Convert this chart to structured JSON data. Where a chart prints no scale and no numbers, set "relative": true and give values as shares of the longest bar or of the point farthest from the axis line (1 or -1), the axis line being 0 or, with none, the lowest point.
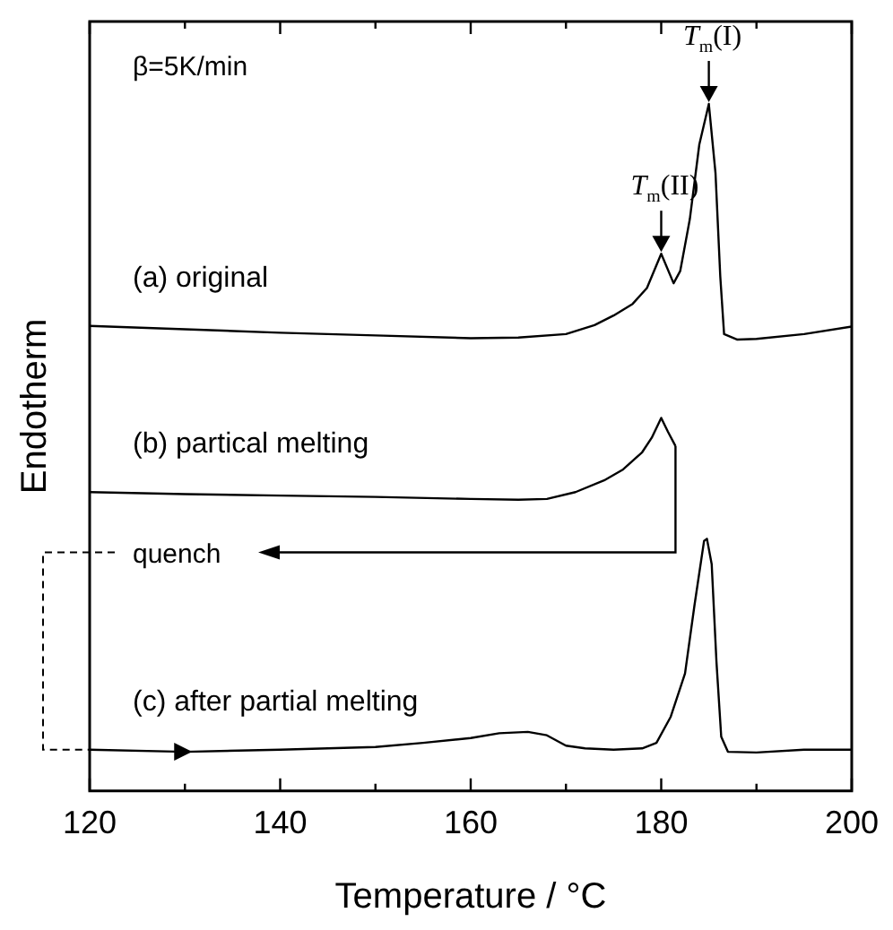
{
  "chart_data": {
    "type": "line",
    "relative": true,
    "xlabel": "Temperature / °C",
    "ylabel": "Endotherm",
    "xlim": [
      120,
      200
    ],
    "xticks": [
      120,
      {
        "value": 130,
        "label": null
      },
      140,
      {
        "value": 150,
        "label": null
      },
      160,
      {
        "value": 170,
        "label": null
      },
      180,
      {
        "value": 190,
        "label": null
      },
      200
    ],
    "grid": false,
    "legend": false,
    "marker": "none",
    "line_style": "solid",
    "series": [
      {
        "name": "(a) original",
        "color": "#000000",
        "x": [
          120,
          130,
          140,
          150,
          160,
          165,
          170,
          173,
          175,
          177,
          178.5,
          180,
          181.3,
          182,
          183,
          184,
          185,
          185.7,
          186.2,
          186.6,
          188,
          190,
          195,
          200
        ],
        "values": [
          0.677,
          0.672,
          0.667,
          0.663,
          0.659,
          0.66,
          0.665,
          0.678,
          0.692,
          0.709,
          0.732,
          0.782,
          0.739,
          0.757,
          0.832,
          0.941,
          1,
          0.899,
          0.749,
          0.665,
          0.657,
          0.658,
          0.665,
          0.676
        ]
      },
      {
        "name": "(b) partical melting",
        "color": "#000000",
        "x": [
          120,
          130,
          140,
          150,
          160,
          165,
          168,
          171,
          174,
          176,
          178,
          179,
          180,
          180.7,
          181.5
        ],
        "values": [
          0.435,
          0.432,
          0.43,
          0.428,
          0.425,
          0.424,
          0.425,
          0.435,
          0.452,
          0.468,
          0.493,
          0.514,
          0.543,
          0.523,
          0.502
        ]
      },
      {
        "name": "(c) after partial melting",
        "color": "#000000",
        "x": [
          120,
          130,
          140,
          150,
          155,
          160,
          163,
          166,
          168,
          170,
          172,
          175,
          178,
          179.5,
          181,
          182.5,
          183.5,
          184.5,
          184.8,
          185.3,
          185.8,
          186.3,
          187,
          190,
          195,
          200
        ],
        "values": [
          0.06,
          0.057,
          0.06,
          0.064,
          0.07,
          0.077,
          0.084,
          0.086,
          0.081,
          0.066,
          0.062,
          0.06,
          0.062,
          0.07,
          0.108,
          0.171,
          0.271,
          0.364,
          0.367,
          0.33,
          0.188,
          0.079,
          0.057,
          0.056,
          0.06,
          0.06
        ]
      }
    ],
    "annotations": [
      "β=5K/min",
      "quench",
      {
        "text": "T$_{m}$(I)",
        "x": 185,
        "y": 1
      },
      {
        "text": "T$_{m}$(II)",
        "x": 180,
        "y": 0.782
      }
    ]
  }
}
